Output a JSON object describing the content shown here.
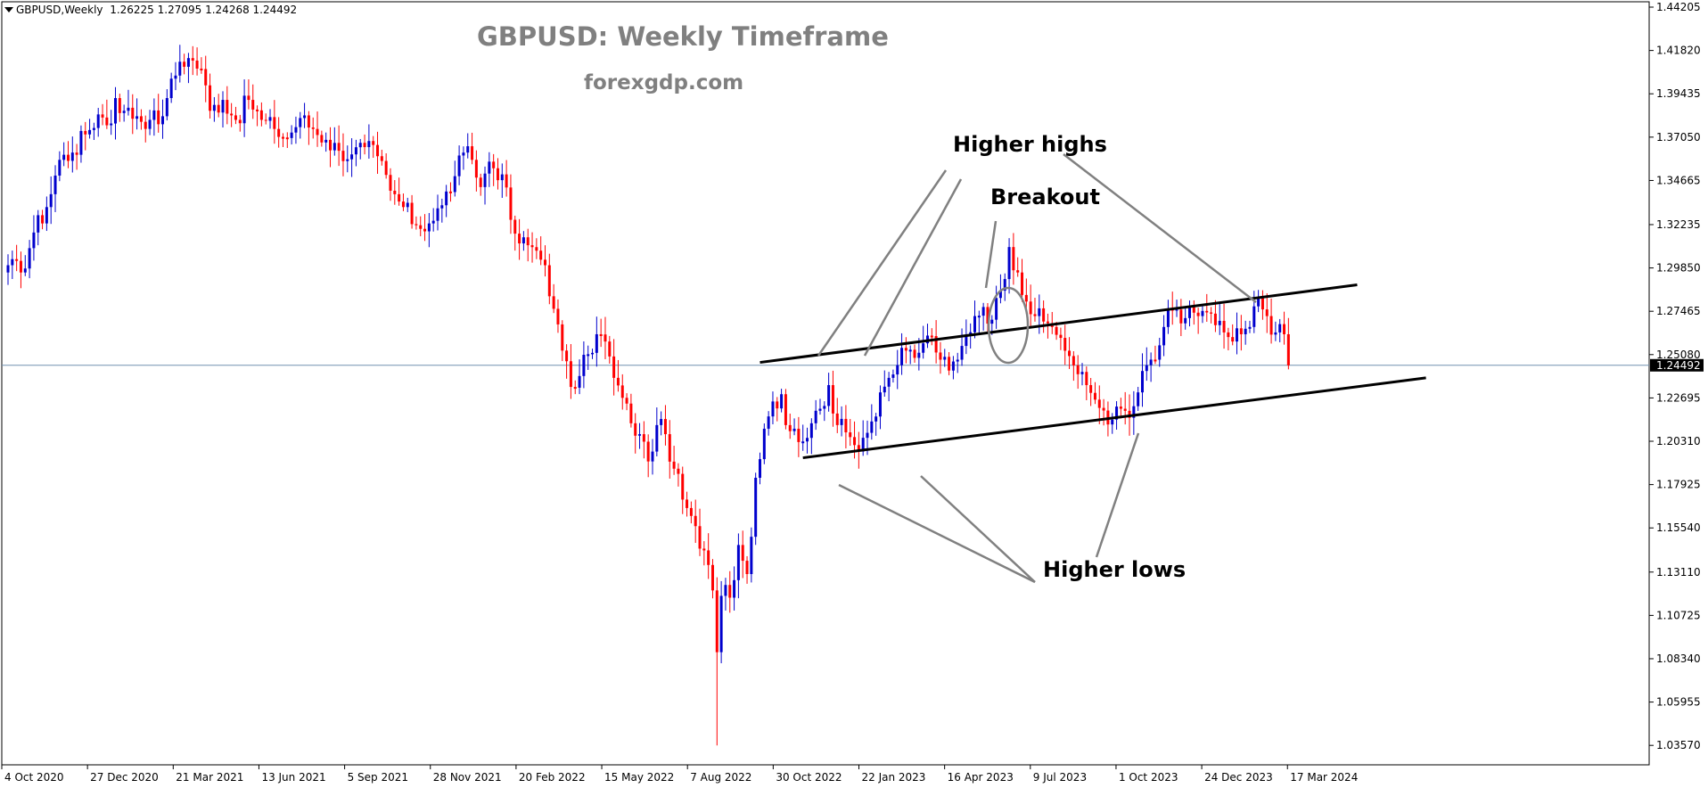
{
  "header": {
    "symbol": "GBPUSD,Weekly",
    "open": "1.26225",
    "high": "1.27095",
    "low": "1.24268",
    "close": "1.24492"
  },
  "title": "GBPUSD: Weekly Timeframe",
  "subtitle": "forexgdp.com",
  "annotations": {
    "higher_highs": "Higher highs",
    "breakout": "Breakout",
    "higher_lows": "Higher lows"
  },
  "colors": {
    "bull": "#0000cd",
    "bear": "#ff0000",
    "grid_line": "#7090b0",
    "trendline": "#000000",
    "arrow": "#808080"
  },
  "chart_data": {
    "type": "candlestick",
    "title": "GBPUSD: Weekly Timeframe",
    "timeframe": "Weekly",
    "ylim": [
      1.025,
      1.445
    ],
    "y_ticks": [
      "1.44205",
      "1.41820",
      "1.39435",
      "1.37050",
      "1.34665",
      "1.32235",
      "1.29850",
      "1.27465",
      "1.25080",
      "1.22695",
      "1.20310",
      "1.17925",
      "1.15540",
      "1.13110",
      "1.10725",
      "1.08340",
      "1.05955",
      "1.03570"
    ],
    "x_ticks": [
      "4 Oct 2020",
      "27 Dec 2020",
      "21 Mar 2021",
      "13 Jun 2021",
      "5 Sep 2021",
      "28 Nov 2021",
      "20 Feb 2022",
      "15 May 2022",
      "7 Aug 2022",
      "30 Oct 2022",
      "22 Jan 2023",
      "16 Apr 2023",
      "9 Jul 2023",
      "1 Oct 2023",
      "24 Dec 2023",
      "17 Mar 2024"
    ],
    "current_price": "1.24492",
    "close_path": [
      [
        0,
        1.3
      ],
      [
        3,
        1.296
      ],
      [
        6,
        1.318
      ],
      [
        9,
        1.332
      ],
      [
        12,
        1.358
      ],
      [
        15,
        1.362
      ],
      [
        18,
        1.372
      ],
      [
        21,
        1.383
      ],
      [
        24,
        1.378
      ],
      [
        25,
        1.392
      ],
      [
        27,
        1.385
      ],
      [
        30,
        1.382
      ],
      [
        33,
        1.38
      ],
      [
        36,
        1.382
      ],
      [
        37,
        1.392
      ],
      [
        40,
        1.412
      ],
      [
        42,
        1.414
      ],
      [
        45,
        1.408
      ],
      [
        47,
        1.385
      ],
      [
        50,
        1.391
      ],
      [
        53,
        1.38
      ],
      [
        56,
        1.391
      ],
      [
        59,
        1.38
      ],
      [
        62,
        1.375
      ],
      [
        65,
        1.37
      ],
      [
        68,
        1.381
      ],
      [
        71,
        1.375
      ],
      [
        74,
        1.369
      ],
      [
        77,
        1.363
      ],
      [
        80,
        1.361
      ],
      [
        83,
        1.365
      ],
      [
        86,
        1.36
      ],
      [
        89,
        1.341
      ],
      [
        92,
        1.332
      ],
      [
        95,
        1.322
      ],
      [
        98,
        1.323
      ],
      [
        101,
        1.333
      ],
      [
        104,
        1.349
      ],
      [
        106,
        1.362
      ],
      [
        108,
        1.358
      ],
      [
        110,
        1.343
      ],
      [
        112,
        1.357
      ],
      [
        115,
        1.35
      ],
      [
        117,
        1.325
      ],
      [
        119,
        1.312
      ],
      [
        121,
        1.311
      ],
      [
        123,
        1.308
      ],
      [
        125,
        1.3
      ],
      [
        127,
        1.276
      ],
      [
        129,
        1.253
      ],
      [
        131,
        1.233
      ],
      [
        133,
        1.239
      ],
      [
        135,
        1.251
      ],
      [
        137,
        1.262
      ],
      [
        139,
        1.258
      ],
      [
        141,
        1.238
      ],
      [
        143,
        1.227
      ],
      [
        145,
        1.213
      ],
      [
        147,
        1.207
      ],
      [
        149,
        1.192
      ],
      [
        151,
        1.212
      ],
      [
        153,
        1.207
      ],
      [
        155,
        1.188
      ],
      [
        157,
        1.171
      ],
      [
        159,
        1.162
      ],
      [
        161,
        1.144
      ],
      [
        163,
        1.135
      ],
      [
        164,
        1.121
      ],
      [
        165,
        1.087
      ],
      [
        166,
        1.118
      ],
      [
        167,
        1.124
      ],
      [
        168,
        1.117
      ],
      [
        170,
        1.146
      ],
      [
        172,
        1.13
      ],
      [
        174,
        1.183
      ],
      [
        176,
        1.21
      ],
      [
        178,
        1.225
      ],
      [
        180,
        1.229
      ],
      [
        181,
        1.212
      ],
      [
        183,
        1.21
      ],
      [
        185,
        1.203
      ],
      [
        187,
        1.213
      ],
      [
        189,
        1.221
      ],
      [
        191,
        1.234
      ],
      [
        193,
        1.212
      ],
      [
        195,
        1.208
      ],
      [
        197,
        1.201
      ],
      [
        199,
        1.205
      ],
      [
        201,
        1.214
      ],
      [
        203,
        1.23
      ],
      [
        205,
        1.238
      ],
      [
        207,
        1.245
      ],
      [
        209,
        1.253
      ],
      [
        211,
        1.249
      ],
      [
        213,
        1.257
      ],
      [
        215,
        1.261
      ],
      [
        217,
        1.248
      ],
      [
        219,
        1.242
      ],
      [
        221,
        1.248
      ],
      [
        223,
        1.261
      ],
      [
        225,
        1.272
      ],
      [
        227,
        1.277
      ],
      [
        229,
        1.27
      ],
      [
        231,
        1.286
      ],
      [
        233,
        1.31
      ],
      [
        235,
        1.296
      ],
      [
        237,
        1.28
      ],
      [
        239,
        1.272
      ],
      [
        241,
        1.269
      ],
      [
        243,
        1.266
      ],
      [
        245,
        1.26
      ],
      [
        247,
        1.25
      ],
      [
        249,
        1.24
      ],
      [
        251,
        1.234
      ],
      [
        253,
        1.226
      ],
      [
        255,
        1.22
      ],
      [
        257,
        1.215
      ],
      [
        259,
        1.221
      ],
      [
        261,
        1.216
      ],
      [
        263,
        1.23
      ],
      [
        265,
        1.245
      ],
      [
        267,
        1.248
      ],
      [
        269,
        1.266
      ],
      [
        271,
        1.275
      ],
      [
        273,
        1.268
      ],
      [
        275,
        1.277
      ],
      [
        277,
        1.272
      ],
      [
        279,
        1.274
      ],
      [
        281,
        1.267
      ],
      [
        283,
        1.263
      ],
      [
        285,
        1.258
      ],
      [
        287,
        1.262
      ],
      [
        289,
        1.266
      ],
      [
        291,
        1.282
      ],
      [
        293,
        1.272
      ],
      [
        295,
        1.263
      ],
      [
        297,
        1.262
      ],
      [
        298,
        1.24492
      ]
    ],
    "trendlines": [
      {
        "from": [
          175,
          1.2465
        ],
        "to": [
          314,
          1.2892
        ]
      },
      {
        "from": [
          185,
          1.194
        ],
        "to": [
          330,
          1.238
        ]
      }
    ]
  }
}
